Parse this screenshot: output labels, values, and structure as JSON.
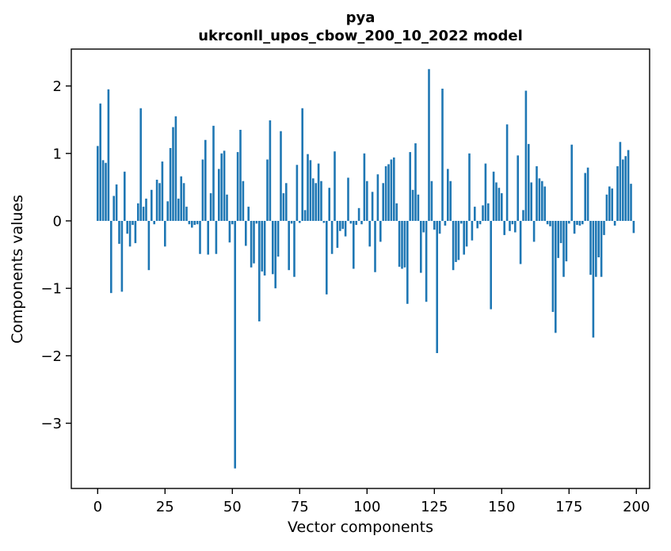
{
  "figure": {
    "title_line1": "pya",
    "title_line2": "ukrconll_upos_cbow_200_10_2022 model"
  },
  "chart_data": {
    "type": "bar",
    "title": "pya",
    "subtitle": "ukrconll_upos_cbow_200_10_2022 model",
    "xlabel": "Vector components",
    "ylabel": "Components values",
    "bar_color": "#1f77b4",
    "background_color": "#ffffff",
    "grid": false,
    "legend": false,
    "n_components": 200,
    "x_note": "x value = component index 0..199",
    "xlim": [
      -10,
      205
    ],
    "ylim": [
      -3.98,
      2.54
    ],
    "xticks": [
      0,
      25,
      50,
      75,
      100,
      125,
      150,
      175,
      200
    ],
    "yticks": [
      2,
      1,
      0,
      -1,
      -2,
      -3
    ],
    "values": [
      1.11,
      1.74,
      0.9,
      0.86,
      1.95,
      -1.07,
      0.37,
      0.54,
      -0.34,
      -1.05,
      0.73,
      -0.19,
      -0.38,
      -0.06,
      -0.33,
      0.26,
      1.67,
      0.21,
      0.33,
      -0.73,
      0.46,
      -0.05,
      0.61,
      0.56,
      0.88,
      -0.38,
      0.29,
      1.08,
      1.39,
      1.55,
      0.33,
      0.66,
      0.56,
      0.21,
      -0.05,
      -0.1,
      -0.06,
      -0.05,
      -0.49,
      0.91,
      1.2,
      -0.5,
      0.41,
      1.41,
      -0.49,
      0.77,
      1.0,
      1.04,
      0.39,
      -0.32,
      -0.05,
      -3.67,
      1.02,
      1.35,
      0.59,
      -0.37,
      0.21,
      -0.69,
      -0.63,
      -0.04,
      -1.49,
      -0.75,
      -0.81,
      0.91,
      1.49,
      -0.79,
      -1.0,
      -0.53,
      1.33,
      0.41,
      0.56,
      -0.73,
      -0.04,
      -0.83,
      0.83,
      -0.03,
      1.67,
      0.16,
      0.99,
      0.9,
      0.63,
      0.56,
      0.85,
      0.59,
      -0.03,
      -1.09,
      0.49,
      -0.49,
      1.03,
      -0.4,
      -0.15,
      -0.12,
      -0.23,
      0.64,
      -0.04,
      -0.71,
      -0.06,
      0.19,
      -0.05,
      1.0,
      0.59,
      -0.38,
      0.43,
      -0.76,
      0.69,
      -0.31,
      0.56,
      0.81,
      0.84,
      0.91,
      0.94,
      0.26,
      -0.68,
      -0.71,
      -0.69,
      -1.23,
      1.02,
      0.46,
      1.15,
      0.39,
      -0.77,
      -0.17,
      -1.2,
      2.25,
      0.59,
      -0.13,
      -1.96,
      -0.19,
      1.96,
      -0.07,
      0.77,
      0.59,
      -0.73,
      -0.61,
      -0.58,
      -0.04,
      -0.5,
      -0.38,
      1.0,
      -0.29,
      0.21,
      -0.11,
      -0.05,
      0.23,
      0.85,
      0.26,
      -1.31,
      0.73,
      0.57,
      0.49,
      0.41,
      -0.21,
      1.43,
      -0.15,
      -0.05,
      -0.17,
      0.97,
      -0.64,
      0.16,
      1.93,
      1.14,
      0.57,
      -0.31,
      0.81,
      0.63,
      0.59,
      0.51,
      -0.05,
      -0.08,
      -1.35,
      -1.66,
      -0.55,
      -0.33,
      -0.83,
      -0.6,
      -0.04,
      1.13,
      -0.19,
      -0.06,
      -0.07,
      -0.05,
      0.71,
      0.79,
      -0.8,
      -1.73,
      -0.83,
      -0.54,
      -0.83,
      -0.21,
      0.39,
      0.51,
      0.48,
      -0.07,
      0.81,
      1.17,
      0.91,
      0.96,
      1.05,
      0.55,
      -0.18
    ]
  }
}
